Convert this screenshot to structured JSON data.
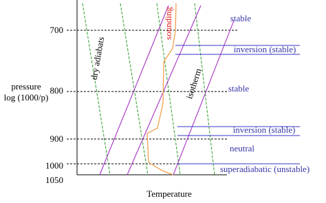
{
  "axis": {
    "label_line1": "pressure",
    "label_line2": "log (1000/p)",
    "ticks": [
      "700",
      "800",
      "900",
      "1000",
      "1050"
    ],
    "x_label": "Temperature"
  },
  "labels": {
    "dry_adiabats": "dry adiabats",
    "isotherm": "isotherm",
    "sounding": "sounding"
  },
  "layers": [
    "stable",
    "inversion (stable)",
    "stable",
    "inversion (stable)",
    "neutral",
    "superadiabatic (unstable)"
  ]
}
